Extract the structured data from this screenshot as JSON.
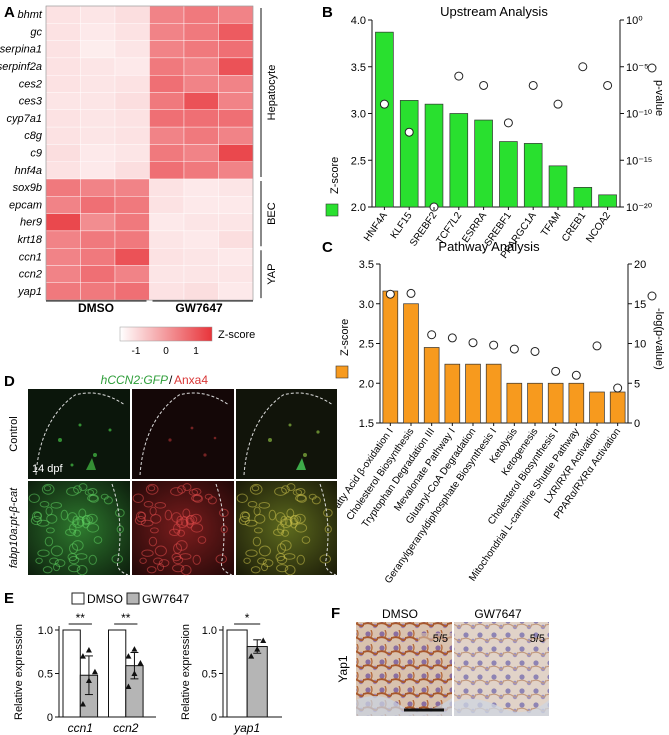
{
  "panel_labels": {
    "a": "A",
    "b": "B",
    "c": "C",
    "d": "D",
    "e": "E",
    "f": "F"
  },
  "colors": {
    "heat_low": "#ffffff",
    "heat_high": "#e8343a",
    "green_bar": "#29e02f",
    "orange_bar": "#f79a1e",
    "gfp": "#4ad15a",
    "anxa4": "#d93636",
    "gray_bar": "#b5b5b5"
  },
  "chart_data": [
    {
      "id": "A",
      "type": "heatmap",
      "rows": [
        "bhmt",
        "gc",
        "serpina1",
        "serpinf2a",
        "ces2",
        "ces3",
        "cyp7a1",
        "c8g",
        "c9",
        "hnf4a",
        "sox9b",
        "epcam",
        "her9",
        "krt18",
        "ccn1",
        "ccn2",
        "yap1"
      ],
      "column_groups": [
        "DMSO",
        "GW7647"
      ],
      "row_groups": [
        {
          "name": "Hepatocyte",
          "from": 0,
          "to": 9
        },
        {
          "name": "BEC",
          "from": 10,
          "to": 13
        },
        {
          "name": "YAP",
          "from": 14,
          "to": 16
        }
      ],
      "values": [
        [
          -0.7,
          -0.8,
          -0.6,
          0.7,
          0.8,
          0.7
        ],
        [
          -0.7,
          -0.9,
          -0.7,
          0.7,
          0.8,
          1.1
        ],
        [
          -0.7,
          -1.0,
          -0.8,
          0.7,
          0.8,
          0.9
        ],
        [
          -0.7,
          -0.8,
          -0.9,
          0.8,
          0.7,
          1.2
        ],
        [
          -0.7,
          -0.8,
          -0.7,
          0.9,
          0.7,
          0.7
        ],
        [
          -0.8,
          -0.8,
          -0.6,
          0.8,
          1.2,
          0.7
        ],
        [
          -0.7,
          -0.8,
          -0.7,
          0.9,
          0.9,
          0.9
        ],
        [
          -0.7,
          -0.8,
          -0.7,
          0.7,
          0.8,
          0.7
        ],
        [
          -0.6,
          -0.9,
          -0.8,
          0.8,
          0.7,
          1.3
        ],
        [
          -0.7,
          -0.9,
          -0.6,
          0.9,
          0.8,
          0.7
        ],
        [
          0.8,
          0.7,
          0.7,
          -0.7,
          -0.9,
          -0.8
        ],
        [
          0.7,
          0.9,
          0.8,
          -0.7,
          -0.9,
          -0.9
        ],
        [
          1.3,
          0.6,
          0.8,
          -0.9,
          -0.8,
          -0.8
        ],
        [
          0.7,
          0.8,
          0.8,
          -0.8,
          -0.9,
          -0.6
        ],
        [
          0.7,
          0.8,
          1.2,
          -0.7,
          -0.8,
          -0.9
        ],
        [
          0.7,
          0.9,
          0.7,
          -0.8,
          -0.8,
          -0.8
        ],
        [
          0.8,
          0.8,
          0.9,
          -0.7,
          -0.6,
          -0.9
        ]
      ],
      "colorbar": {
        "label": "Z-score",
        "ticks": [
          "-1",
          "0",
          "1"
        ],
        "range": [
          -1.5,
          1.5
        ]
      }
    },
    {
      "id": "B",
      "type": "bar",
      "title": "Upstream Analysis",
      "categories": [
        "HNF4A",
        "KLF15",
        "SREBF2",
        "TCF7L2",
        "ESRRA",
        "SREBF1",
        "PPARGC1A",
        "TFAM",
        "CREB1",
        "NCOA2"
      ],
      "series": [
        {
          "name": "Z-score",
          "values": [
            3.87,
            3.14,
            3.1,
            3.0,
            2.93,
            2.7,
            2.68,
            2.44,
            2.21,
            2.13
          ]
        },
        {
          "name": "p-value",
          "values": [
            1e-09,
            1e-12,
            1e-20,
            1e-06,
            1e-07,
            1e-11,
            1e-07,
            1e-09,
            1e-05,
            1e-07
          ]
        }
      ],
      "ylabel": "Z-score",
      "y2label": "p-value",
      "ylim": [
        2.0,
        4.0
      ],
      "yticks": [
        "2.0",
        "2.5",
        "3.0",
        "3.5",
        "4.0"
      ],
      "y2ticks": [
        "10⁰",
        "10⁻⁵",
        "10⁻¹⁰",
        "10⁻¹⁵",
        "10⁻²⁰"
      ]
    },
    {
      "id": "C",
      "type": "bar",
      "title": "Pathway Analysis",
      "categories": [
        "Fatty Acid β-oxidation I",
        "Cholesterol Biosynthesis",
        "Tryptophan Degradation III",
        "Mevalonate Pathway I",
        "Glutaryl-CoA Degradation",
        "Geranylgeranyldiphosphate Biosynthesis I",
        "Ketolysis",
        "Ketogenesis",
        "Cholesterol Biosynthesis I",
        "Mitochondrial L-carnitine Shuttle Pathway",
        "LXR/RXR Activation",
        "PPARα/RXRα Activation"
      ],
      "series": [
        {
          "name": "Z-score",
          "values": [
            3.16,
            3.0,
            2.45,
            2.24,
            2.24,
            2.24,
            2.0,
            2.0,
            2.0,
            2.0,
            1.89,
            1.89
          ]
        },
        {
          "name": "-log(p-value)",
          "values": [
            16.2,
            16.3,
            11.1,
            10.7,
            10.1,
            9.8,
            9.3,
            9.0,
            6.5,
            6.0,
            9.7,
            4.4
          ]
        }
      ],
      "ylabel": "Z-score",
      "y2label": "-log(p-value)",
      "ylim": [
        1.5,
        3.5
      ],
      "y2lim": [
        0,
        20
      ],
      "yticks": [
        "1.5",
        "2.0",
        "2.5",
        "3.0",
        "3.5"
      ],
      "y2ticks": [
        "0",
        "5",
        "10",
        "15",
        "20"
      ]
    },
    {
      "id": "E1",
      "type": "bar",
      "categories": [
        "ccn1",
        "ccn2"
      ],
      "series": [
        {
          "name": "DMSO",
          "values": [
            1.0,
            1.0
          ]
        },
        {
          "name": "GW7647",
          "values": [
            0.48,
            0.59
          ]
        }
      ],
      "points": [
        [
          0.15,
          0.42,
          0.52,
          0.7,
          0.77
        ],
        [
          0.35,
          0.5,
          0.62,
          0.7,
          0.78
        ]
      ],
      "ylabel": "Relative expression",
      "ylim": [
        0,
        1.0
      ],
      "yticks": [
        "0",
        "0.5",
        "1.0"
      ],
      "significance": [
        "**",
        "**"
      ]
    },
    {
      "id": "E2",
      "type": "bar",
      "categories": [
        "yap1"
      ],
      "series": [
        {
          "name": "DMSO",
          "values": [
            1.0
          ]
        },
        {
          "name": "GW7647",
          "values": [
            0.81
          ]
        }
      ],
      "points": [
        [
          0.7,
          0.78,
          0.88
        ]
      ],
      "ylabel": "Relative expression",
      "ylim": [
        0,
        1.0
      ],
      "yticks": [
        "0",
        "0.5",
        "1.0"
      ],
      "significance": [
        "*"
      ]
    }
  ],
  "panel_d": {
    "title_green": "hCCN2:GFP",
    "title_slash": "/",
    "title_red": "Anxa4",
    "row_labels": [
      "Control",
      "fabp10a:pt-β-cat"
    ],
    "stage": "14 dpf"
  },
  "panel_e": {
    "legend": [
      "DMSO",
      "GW7647"
    ]
  },
  "panel_f": {
    "columns": [
      "DMSO",
      "GW7647"
    ],
    "ratios": [
      "5/5",
      "5/5"
    ],
    "row_label": "Yap1"
  }
}
